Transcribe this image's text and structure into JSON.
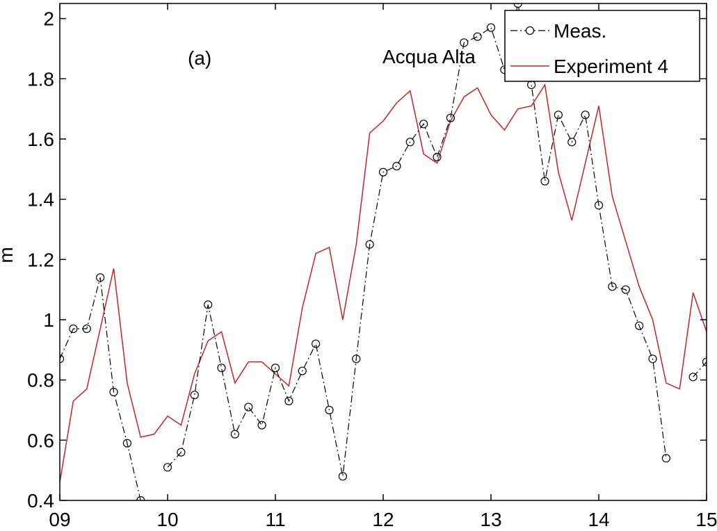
{
  "chart_data": {
    "type": "line",
    "panel_label": "(a)",
    "annotation": "Acqua Alta",
    "xlabel": "",
    "ylabel": "m",
    "xlim": [
      9,
      15
    ],
    "ylim": [
      0.4,
      2.05
    ],
    "x_ticks": [
      9,
      10,
      11,
      12,
      13,
      14,
      15
    ],
    "x_tick_labels": [
      "09",
      "10",
      "11",
      "12",
      "13",
      "14",
      "15"
    ],
    "y_ticks": [
      0.4,
      0.6,
      0.8,
      1.0,
      1.2,
      1.4,
      1.6,
      1.8,
      2.0
    ],
    "y_tick_labels": [
      "0.4",
      "0.6",
      "0.8",
      "1",
      "1.2",
      "1.4",
      "1.6",
      "1.8",
      "2"
    ],
    "grid": false,
    "legend_position": "top-right",
    "series": [
      {
        "name": "Meas.",
        "color": "#000000",
        "style": "dash-dot-circle",
        "segments": [
          [
            [
              9.0,
              0.87
            ],
            [
              9.125,
              0.97
            ],
            [
              9.25,
              0.97
            ],
            [
              9.375,
              1.14
            ],
            [
              9.5,
              0.76
            ],
            [
              9.625,
              0.59
            ],
            [
              9.75,
              0.4
            ]
          ],
          [
            [
              10.0,
              0.51
            ],
            [
              10.125,
              0.56
            ],
            [
              10.25,
              0.75
            ],
            [
              10.375,
              1.05
            ],
            [
              10.5,
              0.84
            ],
            [
              10.625,
              0.62
            ],
            [
              10.75,
              0.71
            ],
            [
              10.875,
              0.65
            ],
            [
              11.0,
              0.84
            ],
            [
              11.125,
              0.73
            ],
            [
              11.25,
              0.83
            ],
            [
              11.375,
              0.92
            ],
            [
              11.5,
              0.7
            ],
            [
              11.625,
              0.48
            ],
            [
              11.75,
              0.87
            ],
            [
              11.875,
              1.25
            ],
            [
              12.0,
              1.49
            ],
            [
              12.125,
              1.51
            ],
            [
              12.25,
              1.59
            ],
            [
              12.375,
              1.65
            ],
            [
              12.5,
              1.54
            ],
            [
              12.625,
              1.67
            ],
            [
              12.75,
              1.92
            ],
            [
              12.875,
              1.94
            ],
            [
              13.0,
              1.97
            ],
            [
              13.125,
              1.83
            ],
            [
              13.25,
              2.05
            ],
            [
              13.375,
              1.78
            ],
            [
              13.5,
              1.46
            ],
            [
              13.625,
              1.68
            ],
            [
              13.75,
              1.59
            ],
            [
              13.875,
              1.68
            ],
            [
              14.0,
              1.38
            ],
            [
              14.125,
              1.11
            ],
            [
              14.25,
              1.1
            ],
            [
              14.375,
              0.98
            ],
            [
              14.5,
              0.87
            ],
            [
              14.625,
              0.54
            ]
          ],
          [
            [
              14.875,
              0.81
            ],
            [
              15.0,
              0.86
            ]
          ]
        ]
      },
      {
        "name": "Experiment 4",
        "color": "#cc2222",
        "style": "solid",
        "points": [
          [
            9.0,
            0.46
          ],
          [
            9.125,
            0.73
          ],
          [
            9.25,
            0.77
          ],
          [
            9.375,
            0.97
          ],
          [
            9.5,
            1.17
          ],
          [
            9.625,
            0.79
          ],
          [
            9.75,
            0.61
          ],
          [
            9.875,
            0.62
          ],
          [
            10.0,
            0.68
          ],
          [
            10.125,
            0.65
          ],
          [
            10.25,
            0.82
          ],
          [
            10.375,
            0.93
          ],
          [
            10.5,
            0.96
          ],
          [
            10.625,
            0.79
          ],
          [
            10.75,
            0.86
          ],
          [
            10.875,
            0.86
          ],
          [
            11.0,
            0.82
          ],
          [
            11.125,
            0.78
          ],
          [
            11.25,
            1.04
          ],
          [
            11.375,
            1.22
          ],
          [
            11.5,
            1.24
          ],
          [
            11.625,
            1.0
          ],
          [
            11.75,
            1.25
          ],
          [
            11.875,
            1.62
          ],
          [
            12.0,
            1.66
          ],
          [
            12.125,
            1.72
          ],
          [
            12.25,
            1.76
          ],
          [
            12.375,
            1.55
          ],
          [
            12.5,
            1.52
          ],
          [
            12.625,
            1.66
          ],
          [
            12.75,
            1.74
          ],
          [
            12.875,
            1.77
          ],
          [
            13.0,
            1.68
          ],
          [
            13.125,
            1.63
          ],
          [
            13.25,
            1.7
          ],
          [
            13.375,
            1.71
          ],
          [
            13.5,
            1.78
          ],
          [
            13.625,
            1.49
          ],
          [
            13.75,
            1.33
          ],
          [
            13.875,
            1.52
          ],
          [
            14.0,
            1.71
          ],
          [
            14.125,
            1.41
          ],
          [
            14.25,
            1.26
          ],
          [
            14.375,
            1.11
          ],
          [
            14.5,
            1.0
          ],
          [
            14.625,
            0.79
          ],
          [
            14.75,
            0.77
          ],
          [
            14.875,
            1.09
          ],
          [
            15.0,
            0.96
          ]
        ]
      }
    ]
  }
}
